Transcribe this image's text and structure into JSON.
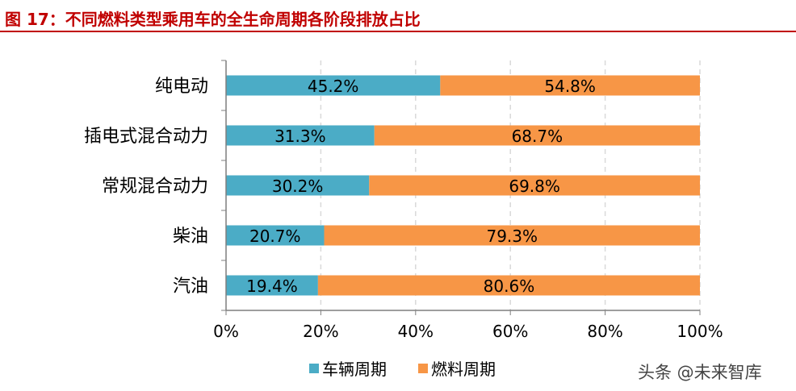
{
  "figure": {
    "title": "图 17：不同燃料类型乘用车的全生命周期各阶段排放占比"
  },
  "watermark": "头条 @未来智库",
  "colors": {
    "title": "#c00000",
    "vehicle_cycle": "#4bacc6",
    "fuel_cycle": "#f79646",
    "axis": "#7f7f7f",
    "grid": "#d9d9d9"
  },
  "chart_data": {
    "type": "bar",
    "orientation": "horizontal",
    "stacked": "percent",
    "categories": [
      "纯电动",
      "插电式混合动力",
      "常规混合动力",
      "柴油",
      "汽油"
    ],
    "series": [
      {
        "name": "车辆周期",
        "values": [
          45.2,
          31.3,
          30.2,
          20.7,
          19.4
        ],
        "labels": [
          "45.2%",
          "31.3%",
          "30.2%",
          "20.7%",
          "19.4%"
        ]
      },
      {
        "name": "燃料周期",
        "values": [
          54.8,
          68.7,
          69.8,
          79.3,
          80.6
        ],
        "labels": [
          "54.8%",
          "68.7%",
          "69.8%",
          "79.3%",
          "80.6%"
        ]
      }
    ],
    "xlim": [
      0,
      100
    ],
    "x_ticks": [
      "0%",
      "20%",
      "40%",
      "60%",
      "80%",
      "100%"
    ],
    "grid": "vertical dashed",
    "legend_position": "bottom"
  }
}
